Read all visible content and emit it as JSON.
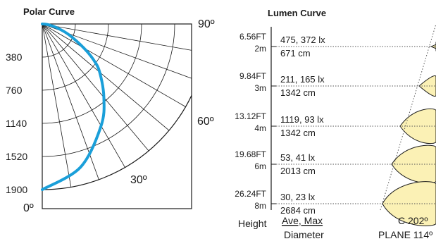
{
  "chart_data": [
    {
      "type": "polar",
      "title": "Polar Curve",
      "radial_ticks": [
        "380",
        "760",
        "1140",
        "1520",
        "1900"
      ],
      "radial_max": 1900,
      "angle_labels": [
        "0º",
        "30º",
        "60º",
        "90º"
      ],
      "series": [
        {
          "color": "#1a9fd9",
          "points": [
            {
              "angle": 0,
              "value": 1900
            },
            {
              "angle": 15,
              "value": 1700
            },
            {
              "angle": 30,
              "value": 1350
            },
            {
              "angle": 40,
              "value": 1100
            },
            {
              "angle": 50,
              "value": 860
            },
            {
              "angle": 55,
              "value": 720
            },
            {
              "angle": 60,
              "value": 550
            },
            {
              "angle": 68,
              "value": 330
            },
            {
              "angle": 75,
              "value": 180
            },
            {
              "angle": 83,
              "value": 70
            },
            {
              "angle": 90,
              "value": 0
            }
          ]
        }
      ]
    },
    {
      "type": "table",
      "title": "Lumen Curve",
      "rows": [
        {
          "height_ft": "6.56FT",
          "height_m": "2m",
          "values": "475, 372  lx",
          "diameter": "671 cm"
        },
        {
          "height_ft": "9.84FT",
          "height_m": "3m",
          "values": "211, 165  lx",
          "diameter": "1342 cm"
        },
        {
          "height_ft": "13.12FT",
          "height_m": "4m",
          "values": "1119, 93  lx",
          "diameter": "1342 cm"
        },
        {
          "height_ft": "19.68FT",
          "height_m": "6m",
          "values": "53, 41  lx",
          "diameter": "2013 cm"
        },
        {
          "height_ft": "26.24FT",
          "height_m": "8m",
          "values": "30, 23  lx",
          "diameter": "2684 cm"
        }
      ],
      "footer": {
        "height": "Height",
        "ave_max": "Ave, Max",
        "diameter": "Diameter",
        "c_angle": "C 202º",
        "plane": "PLANE 114º"
      }
    }
  ],
  "colors": {
    "curve": "#1a9fd9",
    "beam_fill": "#fbf1b5",
    "line": "#1a1a1a"
  }
}
